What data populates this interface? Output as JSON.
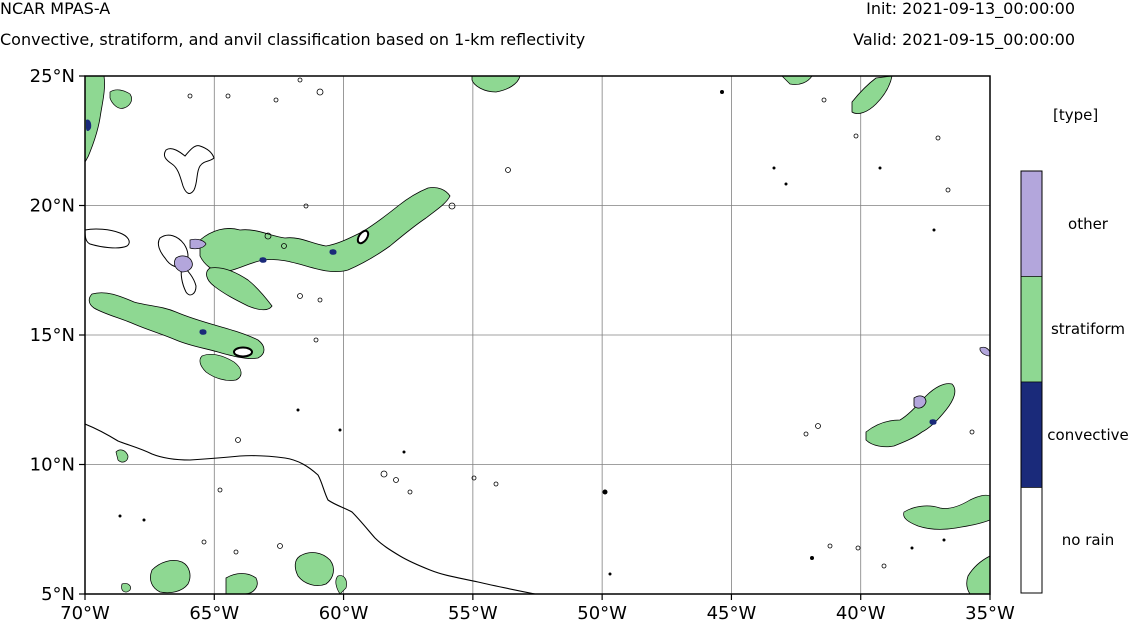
{
  "header": {
    "title": "NCAR MPAS-A",
    "subtitle": "Convective, stratiform, and anvil classification based on 1-km reflectivity",
    "init": "Init: 2021-09-13_00:00:00",
    "valid": "Valid: 2021-09-15_00:00:00"
  },
  "map": {
    "lon_range": [
      -70,
      -35
    ],
    "lat_range": [
      5,
      25
    ],
    "lon_ticks": [
      {
        "value": -70,
        "label": "70°W"
      },
      {
        "value": -65,
        "label": "65°W"
      },
      {
        "value": -60,
        "label": "60°W"
      },
      {
        "value": -55,
        "label": "55°W"
      },
      {
        "value": -50,
        "label": "50°W"
      },
      {
        "value": -45,
        "label": "45°W"
      },
      {
        "value": -40,
        "label": "40°W"
      },
      {
        "value": -35,
        "label": "35°W"
      }
    ],
    "lat_ticks": [
      {
        "value": 25,
        "label": "25°N"
      },
      {
        "value": 20,
        "label": "20°N"
      },
      {
        "value": 15,
        "label": "15°N"
      },
      {
        "value": 10,
        "label": "10°N"
      },
      {
        "value": 5,
        "label": "5°N"
      }
    ],
    "grid_lines": true
  },
  "legend": {
    "title": "[type]",
    "entries": [
      {
        "label": "other",
        "color": "#b3a6dc"
      },
      {
        "label": "stratiform",
        "color": "#8ed892"
      },
      {
        "label": "convective",
        "color": "#1a2a7a"
      },
      {
        "label": "no rain",
        "color": "#ffffff"
      }
    ]
  },
  "colors": {
    "stratiform": "#8ed892",
    "convective": "#1a2a7a",
    "other": "#b3a6dc",
    "coastline": "#000000",
    "grid": "#808080"
  }
}
